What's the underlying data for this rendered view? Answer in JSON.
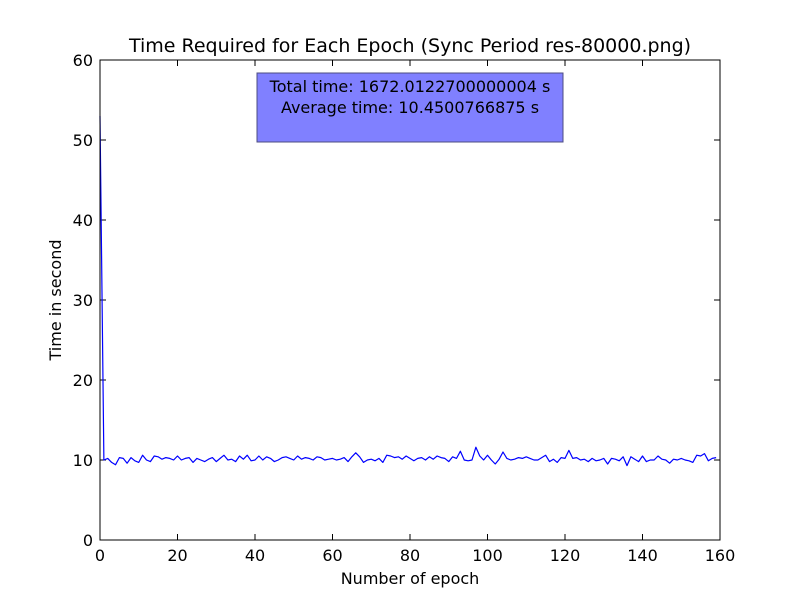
{
  "chart_data": {
    "type": "line",
    "title": "Time Required for Each Epoch (Sync Period res-80000.png)",
    "xlabel": "Number of epoch",
    "ylabel": "Time in second",
    "xlim": [
      0,
      160
    ],
    "ylim": [
      0,
      60
    ],
    "xticks": [
      "0",
      "20",
      "40",
      "60",
      "80",
      "100",
      "120",
      "140",
      "160"
    ],
    "yticks": [
      "0",
      "10",
      "20",
      "30",
      "40",
      "50",
      "60"
    ],
    "grid": false,
    "series": [
      {
        "color": "#0000ff",
        "x": [
          0,
          1,
          2,
          3,
          4,
          5,
          6,
          7,
          8,
          9,
          10,
          11,
          12,
          13,
          14,
          15,
          16,
          17,
          18,
          19,
          20,
          21,
          22,
          23,
          24,
          25,
          26,
          27,
          28,
          29,
          30,
          31,
          32,
          33,
          34,
          35,
          36,
          37,
          38,
          39,
          40,
          41,
          42,
          43,
          44,
          45,
          46,
          47,
          48,
          49,
          50,
          51,
          52,
          53,
          54,
          55,
          56,
          57,
          58,
          59,
          60,
          61,
          62,
          63,
          64,
          65,
          66,
          67,
          68,
          69,
          70,
          71,
          72,
          73,
          74,
          75,
          76,
          77,
          78,
          79,
          80,
          81,
          82,
          83,
          84,
          85,
          86,
          87,
          88,
          89,
          90,
          91,
          92,
          93,
          94,
          95,
          96,
          97,
          98,
          99,
          100,
          101,
          102,
          103,
          104,
          105,
          106,
          107,
          108,
          109,
          110,
          111,
          112,
          113,
          114,
          115,
          116,
          117,
          118,
          119,
          120,
          121,
          122,
          123,
          124,
          125,
          126,
          127,
          128,
          129,
          130,
          131,
          132,
          133,
          134,
          135,
          136,
          137,
          138,
          139,
          140,
          141,
          142,
          143,
          144,
          145,
          146,
          147,
          148,
          149,
          150,
          151,
          152,
          153,
          154,
          155,
          156,
          157,
          158,
          159
        ],
        "y": [
          53.0,
          10.0,
          10.2,
          9.7,
          9.4,
          10.3,
          10.2,
          9.6,
          10.3,
          9.9,
          9.7,
          10.6,
          10.0,
          9.8,
          10.5,
          10.4,
          10.1,
          10.3,
          10.2,
          10.0,
          10.5,
          10.0,
          10.2,
          10.3,
          9.7,
          10.2,
          10.0,
          9.8,
          10.1,
          10.3,
          9.8,
          10.2,
          10.6,
          10.0,
          10.1,
          9.8,
          10.5,
          10.1,
          10.6,
          9.9,
          10.0,
          10.5,
          10.0,
          10.4,
          10.2,
          9.8,
          10.0,
          10.3,
          10.4,
          10.2,
          10.0,
          10.5,
          10.1,
          10.3,
          10.2,
          10.0,
          10.4,
          10.3,
          10.0,
          10.1,
          10.2,
          10.0,
          10.1,
          10.3,
          9.8,
          10.4,
          10.9,
          10.4,
          9.7,
          10.0,
          10.1,
          9.9,
          10.2,
          9.7,
          10.6,
          10.5,
          10.3,
          10.4,
          10.1,
          10.5,
          10.2,
          9.9,
          10.2,
          10.3,
          10.0,
          10.4,
          10.1,
          10.5,
          10.3,
          10.2,
          9.8,
          10.4,
          10.2,
          11.1,
          10.0,
          9.9,
          10.0,
          11.6,
          10.5,
          10.0,
          10.6,
          10.0,
          9.5,
          10.1,
          11.0,
          10.2,
          10.0,
          10.1,
          10.3,
          10.2,
          10.4,
          10.2,
          10.0,
          10.0,
          10.3,
          10.6,
          9.8,
          10.1,
          9.7,
          10.3,
          10.2,
          11.2,
          10.2,
          10.3,
          10.0,
          10.1,
          9.8,
          10.2,
          9.9,
          10.0,
          10.2,
          9.5,
          10.2,
          10.1,
          9.9,
          10.4,
          9.3,
          10.4,
          10.1,
          9.8,
          10.5,
          9.8,
          10.0,
          10.0,
          10.5,
          10.1,
          10.0,
          9.6,
          10.1,
          10.0,
          10.2,
          10.0,
          9.9,
          9.7,
          10.6,
          10.5,
          10.8,
          9.9,
          10.2,
          10.3
        ]
      }
    ],
    "annotation": {
      "lines": [
        "Total time: 1672.0122700000004 s",
        "Average time: 10.4500766875 s"
      ],
      "facecolor": "#8080ff",
      "edgecolor": "#4d4d80",
      "placement": "top-center"
    }
  }
}
